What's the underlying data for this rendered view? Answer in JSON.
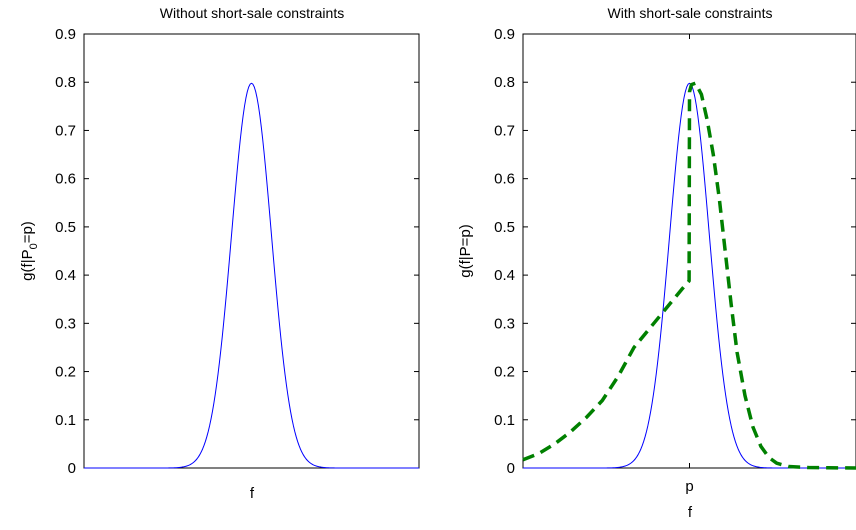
{
  "chart_data": [
    {
      "type": "line",
      "title": "Without short-sale constraints",
      "xlabel": "f",
      "ylabel": "g(f|P",
      "ylabel_sub": "0",
      "ylabel_tail": "=p)",
      "x_ticks": [],
      "ylim": [
        0,
        0.9
      ],
      "y_ticks": [
        "0",
        "0.1",
        "0.2",
        "0.3",
        "0.4",
        "0.5",
        "0.6",
        "0.7",
        "0.8",
        "0.9"
      ],
      "xlim": [
        -4.2,
        4.2
      ],
      "grid": false,
      "series": [
        {
          "style": "solid",
          "color": "#0000ff",
          "kind": "normal",
          "mean": 0,
          "sd": 0.5,
          "peak": 0.7979
        }
      ]
    },
    {
      "type": "line",
      "title": "With short-sale constraints",
      "xlabel": "f",
      "ylabel": "g(f|P=p)",
      "x_ticks": [
        "p"
      ],
      "ylim": [
        0,
        0.9
      ],
      "y_ticks": [
        "0",
        "0.1",
        "0.2",
        "0.3",
        "0.4",
        "0.5",
        "0.6",
        "0.7",
        "0.8",
        "0.9"
      ],
      "xlim": [
        -4.2,
        4.2
      ],
      "grid": false,
      "series": [
        {
          "style": "solid",
          "color": "#0000ff",
          "kind": "normal",
          "mean": 0,
          "sd": 0.5,
          "peak": 0.7979
        },
        {
          "style": "dashed",
          "color": "#008000",
          "kind": "points",
          "x": [
            -4.2,
            -3.8,
            -3.4,
            -3.0,
            -2.6,
            -2.2,
            -1.8,
            -1.4,
            -1.0,
            -0.6,
            -0.2,
            -0.01,
            0.0,
            0.05,
            0.15,
            0.3,
            0.45,
            0.6,
            0.75,
            0.9,
            1.05,
            1.2,
            1.4,
            1.6,
            1.8,
            2.0,
            2.2,
            2.5,
            3.0,
            3.5,
            4.2
          ],
          "y": [
            0.017,
            0.03,
            0.05,
            0.075,
            0.105,
            0.14,
            0.19,
            0.25,
            0.29,
            0.33,
            0.37,
            0.388,
            0.78,
            0.795,
            0.798,
            0.775,
            0.72,
            0.65,
            0.56,
            0.45,
            0.34,
            0.24,
            0.15,
            0.085,
            0.045,
            0.022,
            0.01,
            0.003,
            0.001,
            0.0005,
            0.0
          ]
        }
      ]
    }
  ]
}
